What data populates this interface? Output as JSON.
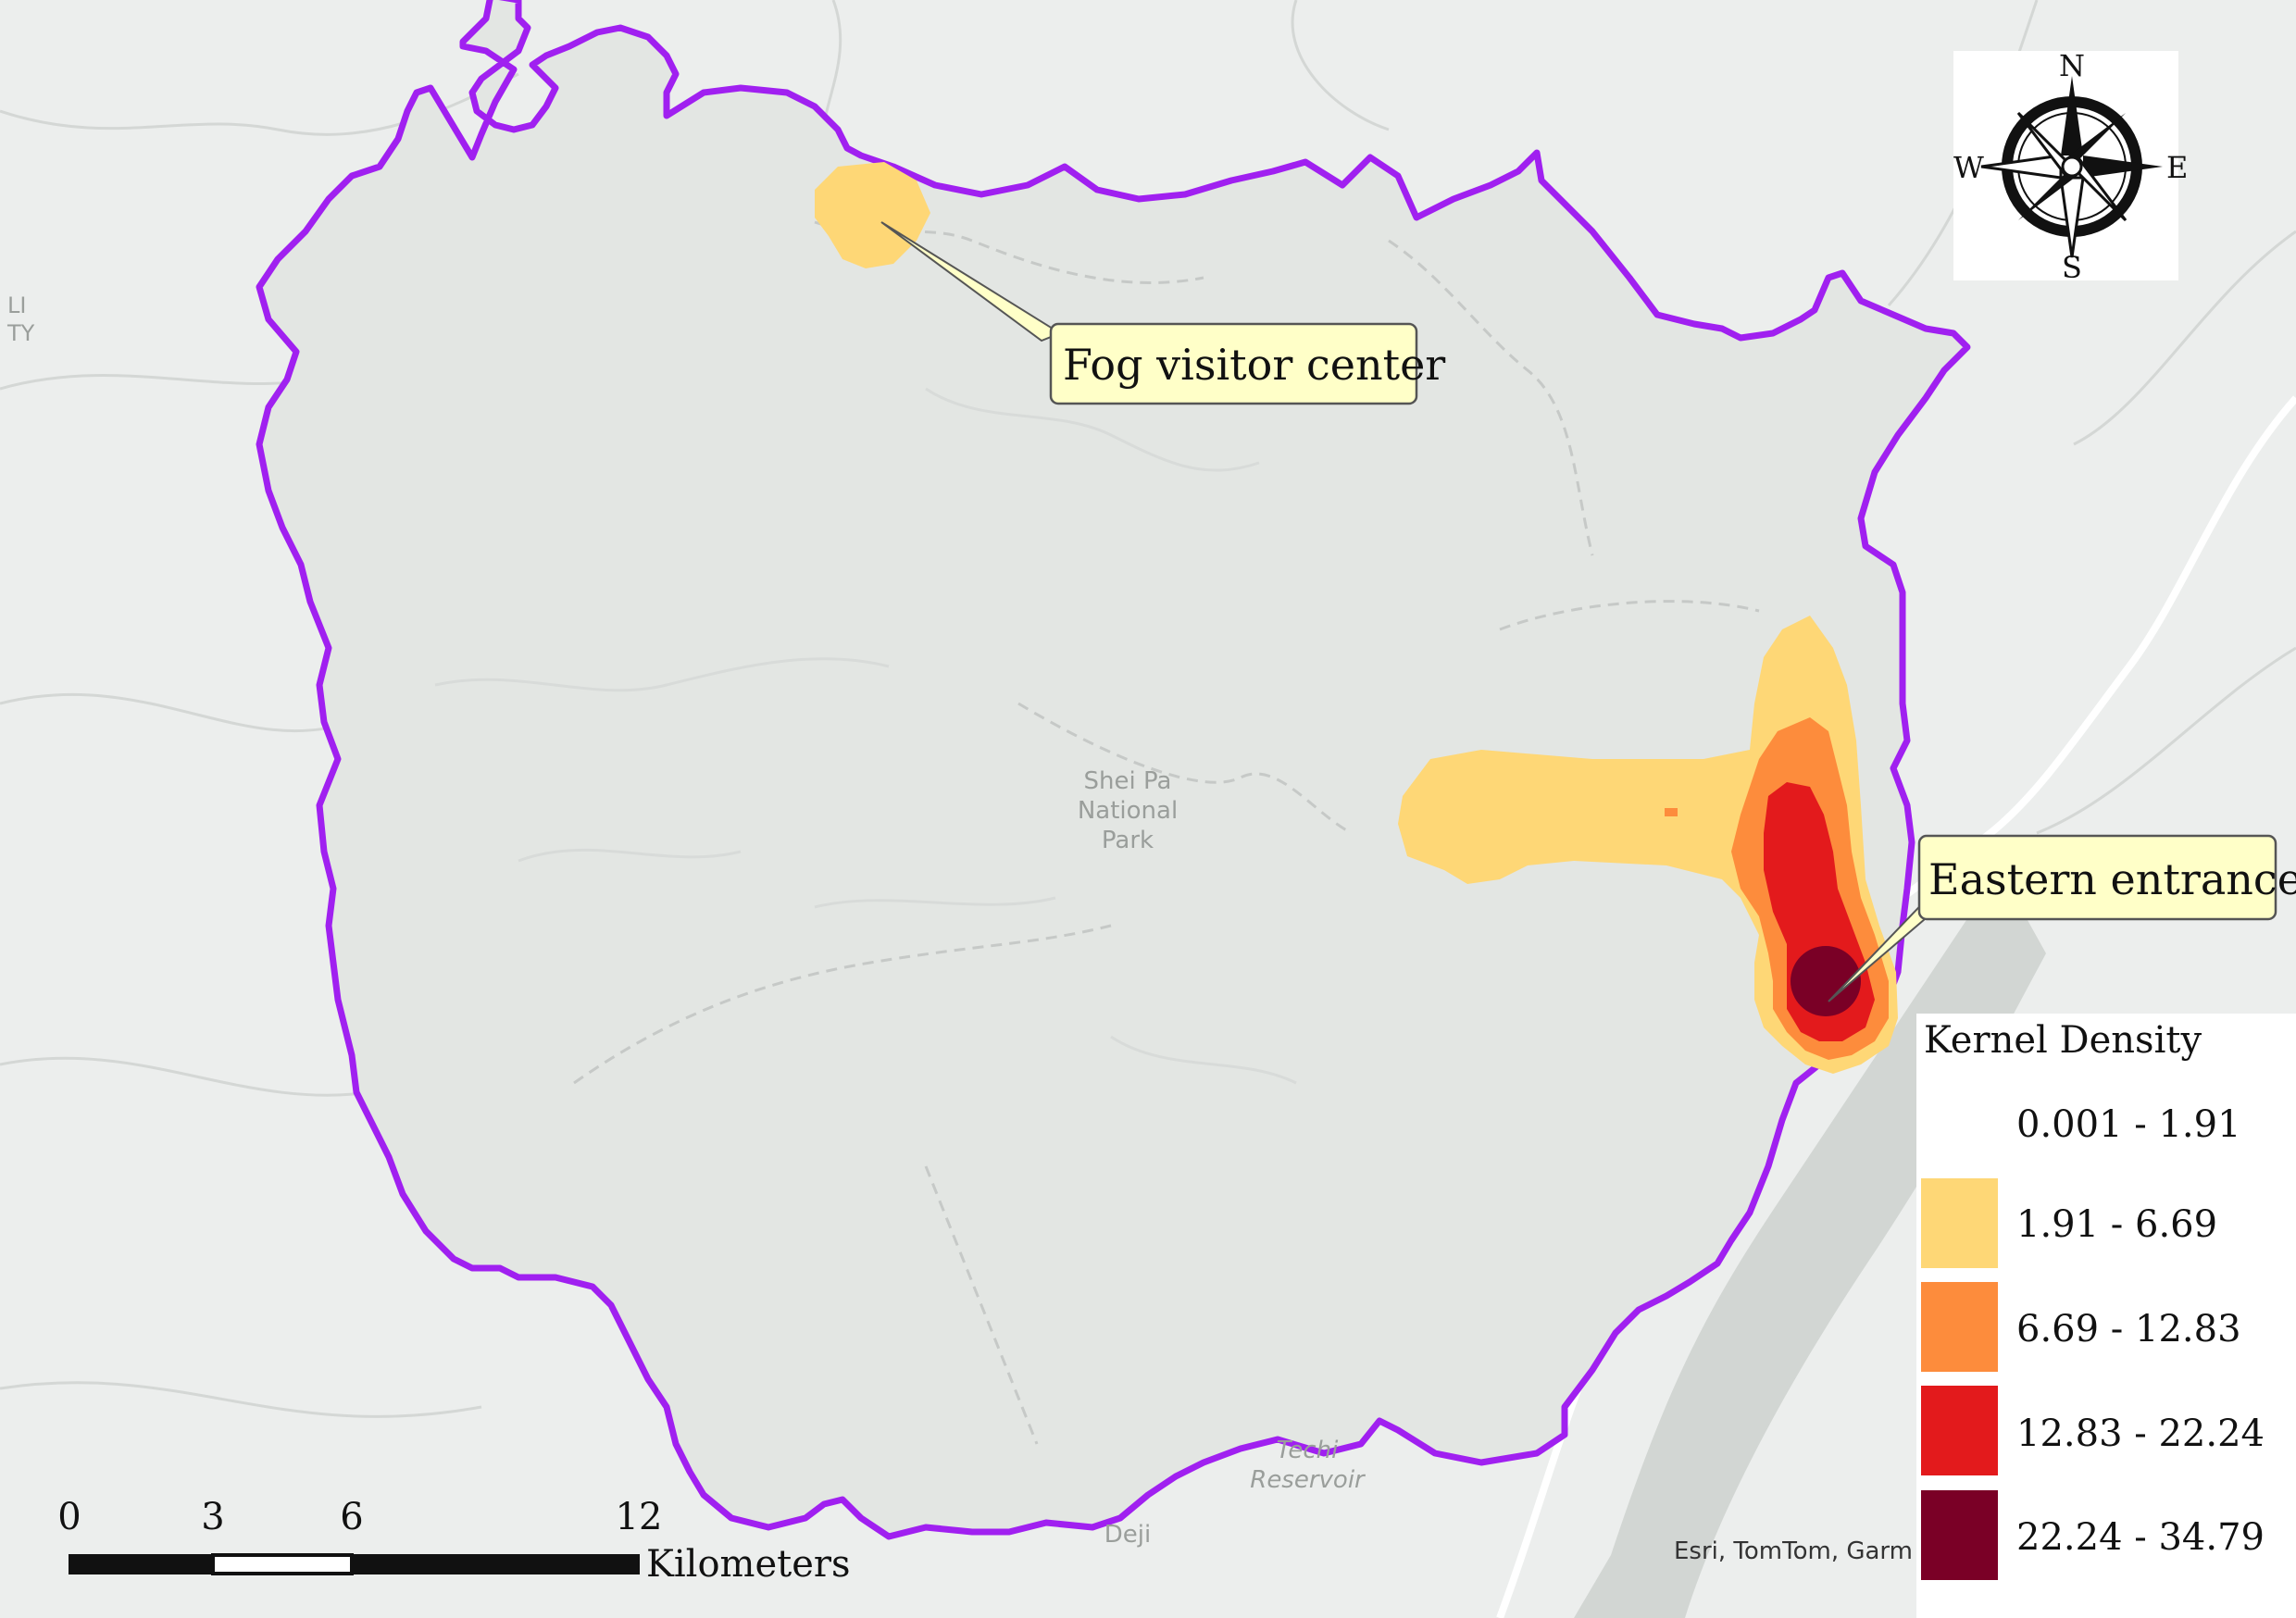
{
  "map": {
    "park_label": [
      "Shei Pa",
      "National",
      "Park"
    ],
    "reservoir_label": [
      "Techi",
      "Reservoir"
    ],
    "town_label": "Deji",
    "edge_label": [
      "LI",
      "TY"
    ],
    "attribution": "Esri, TomTom, Garm",
    "colors": {
      "boundary": "#a020f0",
      "park_fill": "#e3e6e3",
      "density_1": "#fed776",
      "density_2": "#fd8c3c",
      "density_3": "#e31a1c",
      "density_4": "#7a0026"
    }
  },
  "callouts": {
    "fog": "Fog visitor center",
    "east": "Eastern entrance"
  },
  "compass": {
    "n": "N",
    "s": "S",
    "e": "E",
    "w": "W"
  },
  "legend": {
    "title": "Kernel Density",
    "classes": [
      {
        "label": "0.001 - 1.91",
        "color": "#ffffff"
      },
      {
        "label": "1.91 - 6.69",
        "color": "#fed776"
      },
      {
        "label": "6.69 - 12.83",
        "color": "#fd8c3c"
      },
      {
        "label": "12.83 - 22.24",
        "color": "#e31a1c"
      },
      {
        "label": "22.24 - 34.79",
        "color": "#7a0026"
      }
    ]
  },
  "scalebar": {
    "ticks": [
      "0",
      "3",
      "6",
      "12"
    ],
    "unit": "Kilometers"
  }
}
